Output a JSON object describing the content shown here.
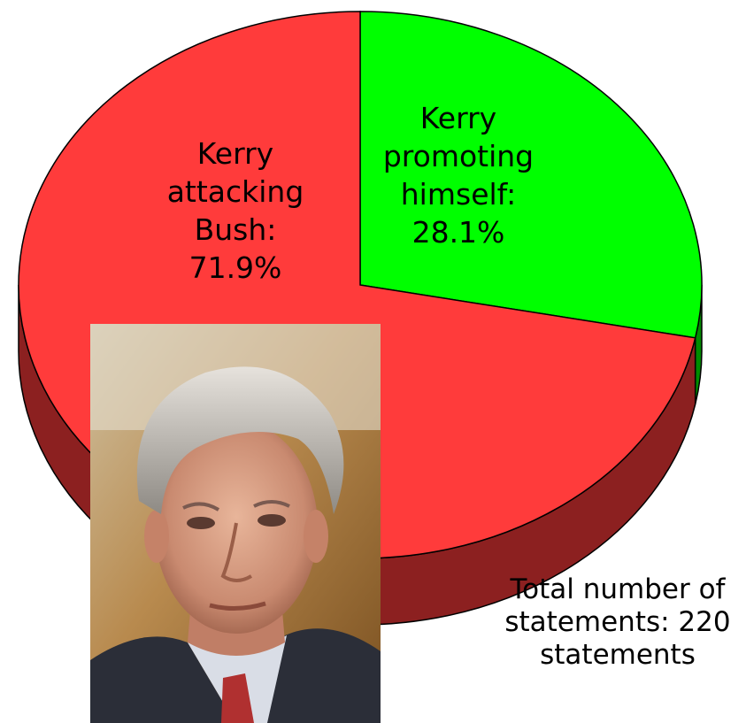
{
  "chart_data": {
    "type": "pie",
    "style": "3d",
    "slices": [
      {
        "label": "Kerry attacking Bush",
        "value": 71.9,
        "color": "#ff3b3b",
        "label_lines": [
          "Kerry",
          "attacking",
          "Bush:",
          "71.9%"
        ]
      },
      {
        "label": "Kerry promoting himself",
        "value": 28.1,
        "color": "#00ff00",
        "label_lines": [
          "Kerry",
          "promoting",
          "himself:",
          "28.1%"
        ]
      }
    ],
    "annotation": [
      "Total number of",
      "statements: 220",
      "statements"
    ]
  },
  "photo": {
    "subject": "portrait-photo"
  },
  "colors": {
    "edge": "#000000",
    "red_side": "#8b1a1a",
    "green_side": "#0a7a0a"
  }
}
